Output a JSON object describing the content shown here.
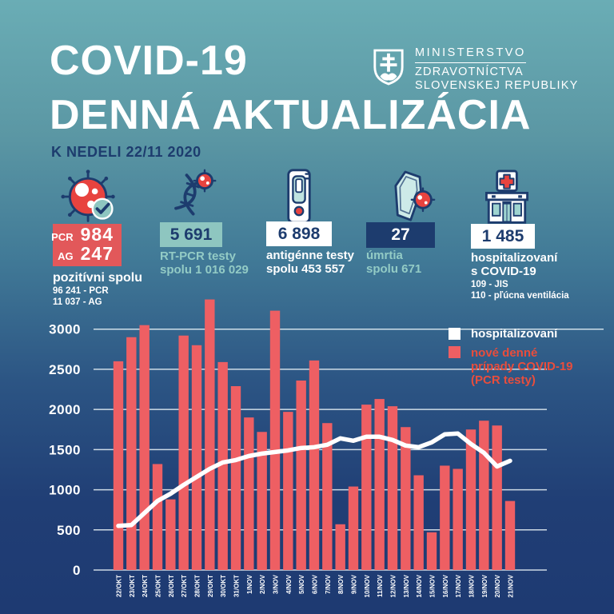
{
  "header": {
    "title_line1": "COVID-19",
    "title_line2": "DENNÁ AKTUALIZÁCIA",
    "date_note": "K NEDELI 22/11 2020"
  },
  "ministry": {
    "line1": "MINISTERSTVO",
    "line2": "ZDRAVOTNÍCTVA",
    "line3": "SLOVENSKEJ REPUBLIKY"
  },
  "stats": {
    "positive": {
      "icon": "virus-check-icon",
      "row1_label": "PCR",
      "row1_value": "984",
      "row2_label": "AG",
      "row2_value": "247",
      "title": "pozitívni spolu",
      "detail1": "96 241 - PCR",
      "detail2": "11 037 - AG"
    },
    "rtpcr": {
      "icon": "dna-virus-icon",
      "value": "5 691",
      "label1": "RT-PCR testy",
      "label2": "spolu 1 016 029"
    },
    "antigen": {
      "icon": "antigen-test-icon",
      "value": "6 898",
      "label1": "antigénne testy",
      "label2": "spolu 453 557"
    },
    "deaths": {
      "icon": "coffin-virus-icon",
      "value": "27",
      "label1": "úmrtia",
      "label2": "spolu 671"
    },
    "hospital": {
      "icon": "hospital-icon",
      "value": "1 485",
      "label1": "hospitalizovaní",
      "label2": "s COVID-19",
      "detail1": "109 - JIS",
      "detail2": "110 - pľúcna ventilácia"
    }
  },
  "legend": {
    "line_series": "hospitalizovaní",
    "bar_series_lines": [
      "nové denné",
      "prípady COVID-19",
      "(PCR testy)"
    ]
  },
  "colors": {
    "navy": "#1d3c6e",
    "teal_box": "#8ec6c0",
    "teal_text": "#93cbc5",
    "red_box": "#e2585a",
    "bar_red": "#ee5f63",
    "legend_red_text": "#e94d3c",
    "icon_red": "#e8433f",
    "background_top": "#6aadb5",
    "background_bottom": "#1e3a72"
  },
  "chart_data": {
    "type": "bar",
    "title": "",
    "xlabel": "",
    "ylabel": "",
    "ylim": [
      0,
      3000
    ],
    "yticks": [
      0,
      500,
      1000,
      1500,
      2000,
      2500,
      3000
    ],
    "grid": true,
    "legend_position": "top-right",
    "categories": [
      "22/OKT",
      "23/OKT",
      "24/OKT",
      "25/OKT",
      "26/OKT",
      "27/OKT",
      "28/OKT",
      "29/OKT",
      "30/OKT",
      "31/OKT",
      "1/NOV",
      "2/NOV",
      "3/NOV",
      "4/NOV",
      "5/NOV",
      "6/NOV",
      "7/NOV",
      "8/NOV",
      "9/NOV",
      "10/NOV",
      "11/NOV",
      "12/NOV",
      "13/NOV",
      "14/NOV",
      "15/NOV",
      "16/NOV",
      "17/NOV",
      "18/NOV",
      "19/NOV",
      "20/NOV",
      "21/NOV"
    ],
    "series": [
      {
        "name": "nové denné prípady COVID-19 (PCR testy)",
        "type": "bar",
        "color": "#ee5f63",
        "values": [
          2600,
          2900,
          3050,
          1320,
          880,
          2920,
          2800,
          3370,
          2590,
          2290,
          1900,
          1720,
          3230,
          1970,
          2360,
          2610,
          1830,
          570,
          1040,
          2060,
          2130,
          2040,
          1780,
          1180,
          470,
          1300,
          1260,
          1750,
          1860,
          1800,
          860
        ]
      },
      {
        "name": "hospitalizovaní",
        "type": "line",
        "color": "#ffffff",
        "values": [
          550,
          560,
          710,
          860,
          950,
          1060,
          1160,
          1260,
          1340,
          1370,
          1420,
          1450,
          1470,
          1490,
          1520,
          1530,
          1560,
          1640,
          1610,
          1660,
          1660,
          1620,
          1550,
          1530,
          1590,
          1690,
          1700,
          1570,
          1460,
          1290,
          1360
        ]
      }
    ]
  }
}
